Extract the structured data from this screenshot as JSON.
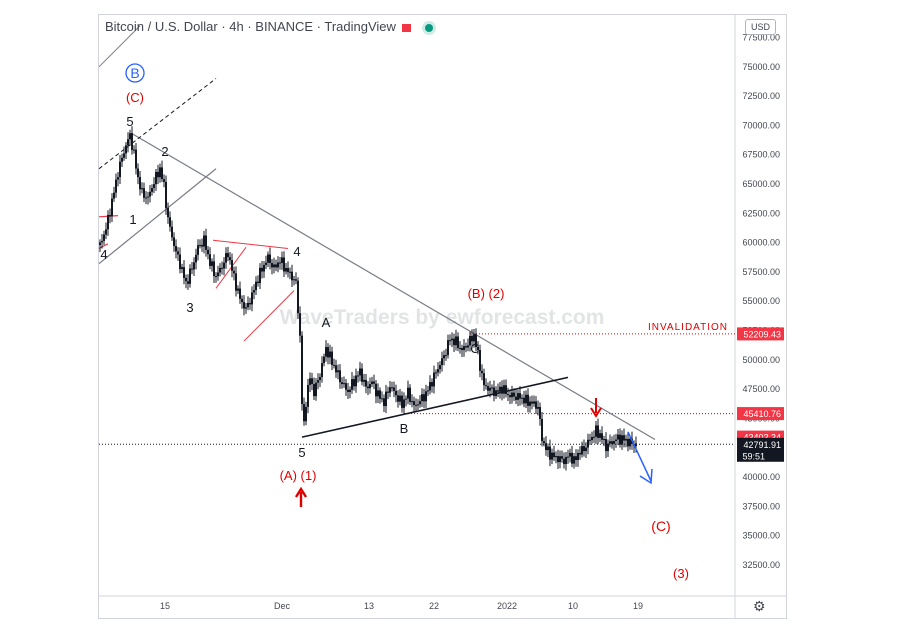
{
  "header": {
    "title": "Bitcoin / U.S. Dollar · 4h · BINANCE · TradingView",
    "currency": "USD"
  },
  "watermark": "WaveTraders by ewforecast.com",
  "chart_data": {
    "type": "candlestick",
    "title": "Bitcoin / U.S. Dollar · 4h · BINANCE · TradingView",
    "y_axis": {
      "ticks": [
        "77500.00",
        "75000.00",
        "72500.00",
        "70000.00",
        "67500.00",
        "65000.00",
        "62500.00",
        "60000.00",
        "57500.00",
        "55000.00",
        "52500.00",
        "50000.00",
        "47500.00",
        "45000.00",
        "42500.00",
        "40000.00",
        "37500.00",
        "35000.00",
        "32500.00"
      ],
      "ylim": [
        30500,
        79000
      ]
    },
    "x_axis": {
      "ticks": [
        "15",
        "Dec",
        "13",
        "22",
        "2022",
        "10",
        "19"
      ]
    },
    "price_path": [
      [
        0,
        59800
      ],
      [
        6,
        61200
      ],
      [
        12,
        63500
      ],
      [
        18,
        66000
      ],
      [
        24,
        67800
      ],
      [
        30,
        69200
      ],
      [
        34,
        67500
      ],
      [
        38,
        65500
      ],
      [
        42,
        64200
      ],
      [
        48,
        63800
      ],
      [
        54,
        65200
      ],
      [
        60,
        66300
      ],
      [
        64,
        64800
      ],
      [
        68,
        62000
      ],
      [
        72,
        60500
      ],
      [
        76,
        59200
      ],
      [
        80,
        58200
      ],
      [
        86,
        56500
      ],
      [
        92,
        57800
      ],
      [
        98,
        59600
      ],
      [
        104,
        60200
      ],
      [
        110,
        58300
      ],
      [
        116,
        57100
      ],
      [
        122,
        58000
      ],
      [
        128,
        59100
      ],
      [
        134,
        57000
      ],
      [
        140,
        55200
      ],
      [
        146,
        54300
      ],
      [
        152,
        55500
      ],
      [
        158,
        57000
      ],
      [
        164,
        58100
      ],
      [
        168,
        58700
      ],
      [
        174,
        57800
      ],
      [
        180,
        58500
      ],
      [
        186,
        57700
      ],
      [
        192,
        57100
      ],
      [
        196,
        56500
      ],
      [
        200,
        52000
      ],
      [
        203,
        43400
      ],
      [
        206,
        46500
      ],
      [
        210,
        48500
      ],
      [
        214,
        47200
      ],
      [
        220,
        48800
      ],
      [
        226,
        51000
      ],
      [
        230,
        50200
      ],
      [
        236,
        49100
      ],
      [
        242,
        48000
      ],
      [
        248,
        47300
      ],
      [
        254,
        48200
      ],
      [
        260,
        49000
      ],
      [
        266,
        47600
      ],
      [
        272,
        48100
      ],
      [
        278,
        47000
      ],
      [
        284,
        46400
      ],
      [
        290,
        47800
      ],
      [
        296,
        47000
      ],
      [
        302,
        46200
      ],
      [
        308,
        47200
      ],
      [
        314,
        46000
      ],
      [
        320,
        46500
      ],
      [
        326,
        47100
      ],
      [
        332,
        48200
      ],
      [
        338,
        49300
      ],
      [
        344,
        50300
      ],
      [
        350,
        51800
      ],
      [
        356,
        51500
      ],
      [
        362,
        50800
      ],
      [
        368,
        51400
      ],
      [
        374,
        52100
      ],
      [
        378,
        50400
      ],
      [
        384,
        47800
      ],
      [
        390,
        47500
      ],
      [
        396,
        47200
      ],
      [
        402,
        47600
      ],
      [
        408,
        47000
      ],
      [
        414,
        46900
      ],
      [
        420,
        46800
      ],
      [
        426,
        46500
      ],
      [
        432,
        46300
      ],
      [
        438,
        46000
      ],
      [
        442,
        43300
      ],
      [
        446,
        42400
      ],
      [
        452,
        41800
      ],
      [
        458,
        41600
      ],
      [
        464,
        41400
      ],
      [
        470,
        41900
      ],
      [
        474,
        41300
      ],
      [
        478,
        42000
      ],
      [
        484,
        42400
      ],
      [
        490,
        43200
      ],
      [
        496,
        43900
      ],
      [
        500,
        43600
      ],
      [
        506,
        42600
      ],
      [
        512,
        43000
      ],
      [
        518,
        43300
      ],
      [
        524,
        43200
      ],
      [
        530,
        42900
      ],
      [
        536,
        42792
      ]
    ],
    "price_labels": [
      {
        "text": "52209.43",
        "value": 52209.43,
        "color": "#f23645"
      },
      {
        "text": "45410.76",
        "value": 45410.76,
        "color": "#f23645"
      },
      {
        "text": "43403.34",
        "value": 43403.34,
        "color": "#f23645"
      },
      {
        "text": "42791.91",
        "sub": "59:51",
        "value": 42791.91,
        "color": "#131722"
      }
    ],
    "levels": [
      {
        "label": "INVALIDATION",
        "value": 52209.43
      },
      {
        "label": "",
        "value": 45410.76
      },
      {
        "label": "",
        "value": 42791.91
      }
    ],
    "annotations": [
      {
        "text": "B",
        "circled": true,
        "color": "#2962ff"
      },
      {
        "text": "(C)",
        "color": "#e00000"
      },
      {
        "text": "5",
        "color": "#131722"
      },
      {
        "text": "2",
        "color": "#131722"
      },
      {
        "text": "1",
        "color": "#131722"
      },
      {
        "text": "4",
        "color": "#131722"
      },
      {
        "text": "3",
        "color": "#131722"
      },
      {
        "text": "4",
        "color": "#131722"
      },
      {
        "text": "A",
        "color": "#131722"
      },
      {
        "text": "5",
        "color": "#131722"
      },
      {
        "text": "(A) (1)",
        "color": "#e00000"
      },
      {
        "text": "B",
        "color": "#131722"
      },
      {
        "text": "(B) (2)",
        "color": "#e00000"
      },
      {
        "text": "C",
        "color": "#131722"
      },
      {
        "text": "INVALIDATION",
        "color": "#e00000"
      },
      {
        "text": "(C)",
        "color": "#e00000"
      },
      {
        "text": "(3)",
        "color": "#e00000"
      }
    ]
  },
  "colors": {
    "candle": "#131722",
    "red": "#e00000",
    "blue": "#2962ff",
    "axis_text": "#434651"
  }
}
